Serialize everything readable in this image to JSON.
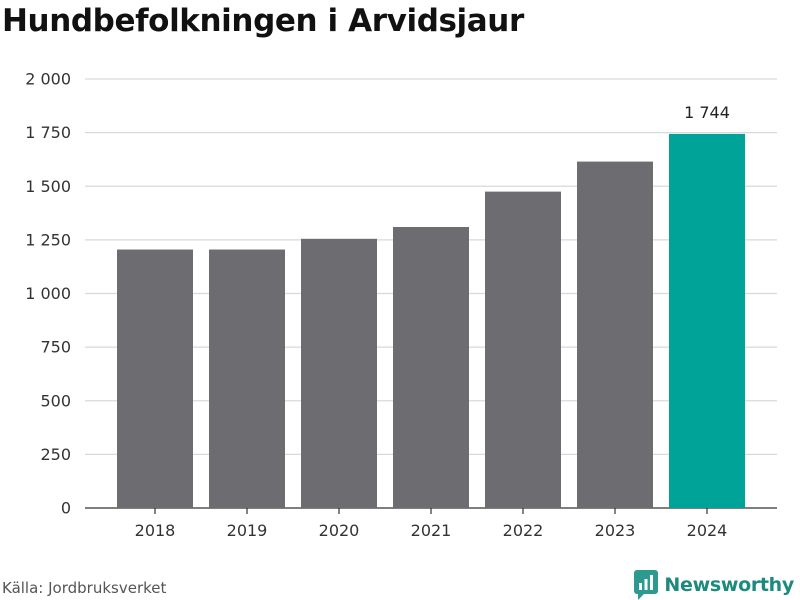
{
  "title": "Hundbefolkningen i Arvidsjaur",
  "source": "Källa: Jordbruksverket",
  "brand": "Newsworthy",
  "colors": {
    "bar": "#6d6c70",
    "highlight": "#00a398",
    "grid": "#d9d9d9",
    "axis": "#333333",
    "brand": "#1d8a7e"
  },
  "chart_data": {
    "type": "bar",
    "categories": [
      "2018",
      "2019",
      "2020",
      "2021",
      "2022",
      "2023",
      "2024"
    ],
    "values": [
      1205,
      1205,
      1255,
      1310,
      1475,
      1615,
      1744
    ],
    "highlight_index": 6,
    "data_label": "1 744",
    "ylim": [
      0,
      2000
    ],
    "yticks": [
      0,
      250,
      500,
      750,
      1000,
      1250,
      1500,
      1750,
      2000
    ],
    "ytick_labels": [
      "0",
      "250",
      "500",
      "750",
      "1 000",
      "1 250",
      "1 500",
      "1 750",
      "2 000"
    ],
    "grid": true
  }
}
